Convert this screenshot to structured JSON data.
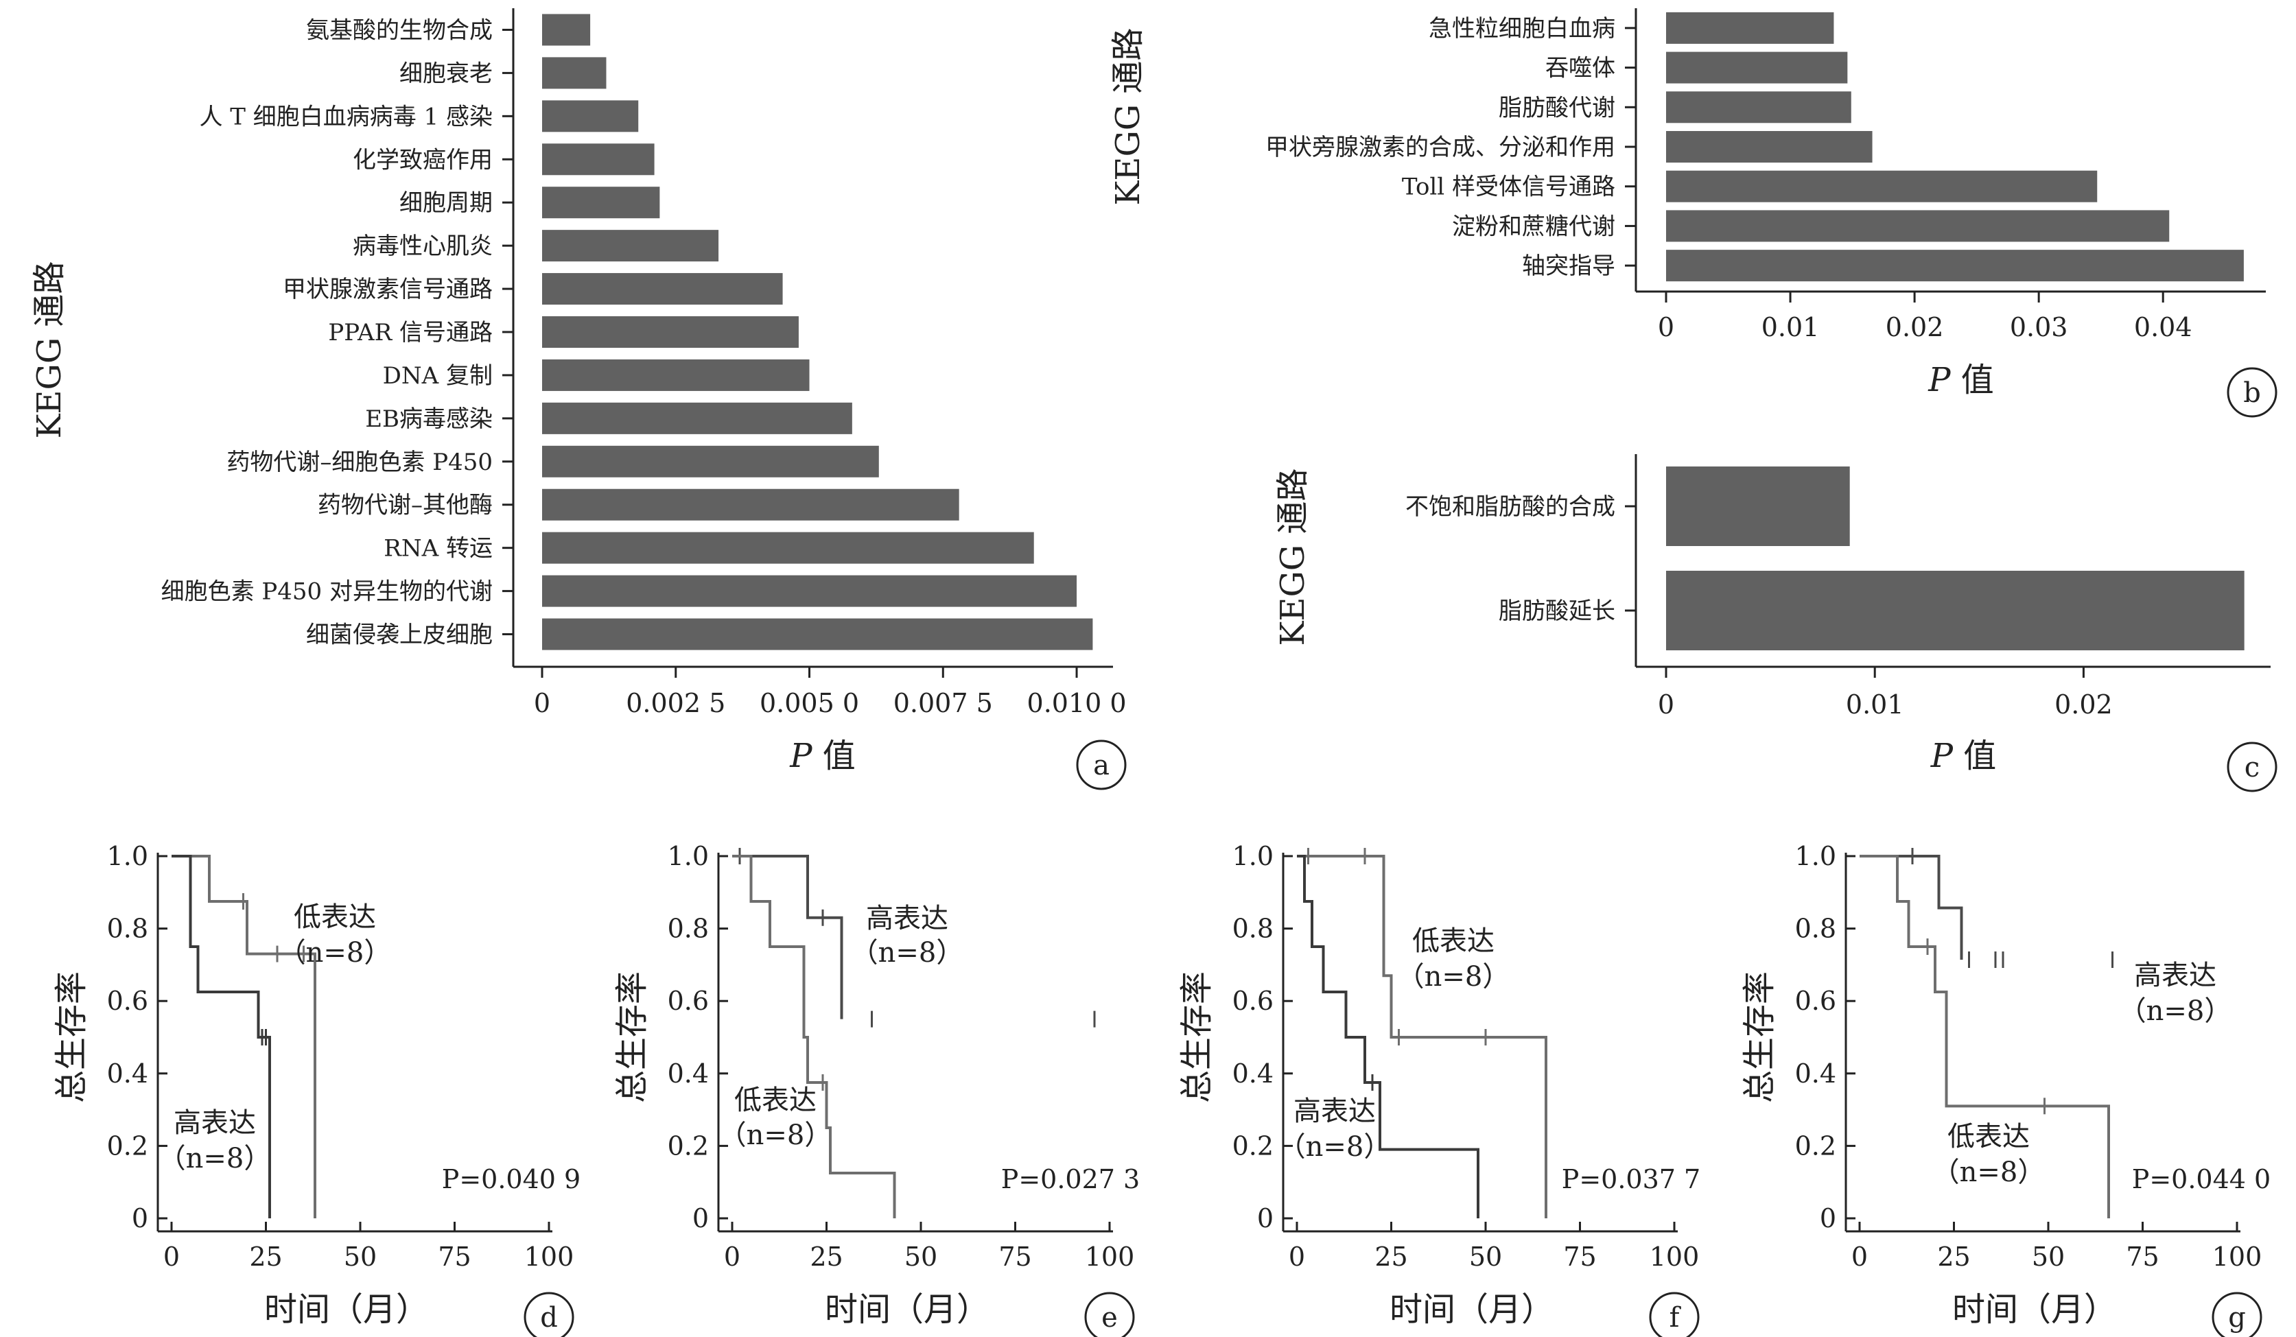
{
  "chart_data": [
    {
      "id": "a",
      "type": "bar",
      "orientation": "horizontal",
      "panel_label": "a",
      "xlabel_italic": "P",
      "xlabel_rest": " 值",
      "ylabel": "KEGG 通路",
      "xlim": [
        0,
        0.0105
      ],
      "xticks": [
        0,
        0.0025,
        0.005,
        0.0075,
        0.01
      ],
      "xtick_labels": [
        "0",
        "0.002 5",
        "0.005 0",
        "0.007 5",
        "0.010 0"
      ],
      "categories": [
        "氨基酸的生物合成",
        "细胞衰老",
        "人 T 细胞白血病病毒 1 感染",
        "化学致癌作用",
        "细胞周期",
        "病毒性心肌炎",
        "甲状腺激素信号通路",
        "PPAR 信号通路",
        "DNA 复制",
        "EB病毒感染",
        "药物代谢–细胞色素 P450",
        "药物代谢–其他酶",
        "RNA 转运",
        "细胞色素 P450 对异生物的代谢",
        "细菌侵袭上皮细胞"
      ],
      "values": [
        0.0009,
        0.0012,
        0.0018,
        0.0021,
        0.0022,
        0.0033,
        0.0045,
        0.0048,
        0.005,
        0.0058,
        0.0063,
        0.0078,
        0.0092,
        0.01,
        0.0103
      ],
      "bar_color": "#616161"
    },
    {
      "id": "b",
      "type": "bar",
      "orientation": "horizontal",
      "panel_label": "b",
      "xlabel_italic": "P",
      "xlabel_rest": " 值",
      "ylabel": "KEGG 通路",
      "xlim": [
        0,
        0.0475
      ],
      "xticks": [
        0,
        0.01,
        0.02,
        0.03,
        0.04
      ],
      "xtick_labels": [
        "0",
        "0.01",
        "0.02",
        "0.03",
        "0.04"
      ],
      "categories": [
        "急性粒细胞白血病",
        "吞噬体",
        "脂肪酸代谢",
        "甲状旁腺激素的合成、分泌和作用",
        "Toll 样受体信号通路",
        "淀粉和蔗糖代谢",
        "轴突指导"
      ],
      "values": [
        0.0135,
        0.0146,
        0.0149,
        0.0166,
        0.0347,
        0.0405,
        0.0465
      ],
      "bar_color": "#616161"
    },
    {
      "id": "c",
      "type": "bar",
      "orientation": "horizontal",
      "panel_label": "c",
      "xlabel_italic": "P",
      "xlabel_rest": " 值",
      "ylabel": "KEGG 通路",
      "xlim": [
        0,
        0.0285
      ],
      "xticks": [
        0,
        0.01,
        0.02
      ],
      "xtick_labels": [
        "0",
        "0.01",
        "0.02"
      ],
      "categories": [
        "不饱和脂肪酸的合成",
        "脂肪酸延长"
      ],
      "values": [
        0.0088,
        0.0277
      ],
      "bar_color": "#616161"
    },
    {
      "id": "d",
      "type": "line",
      "subtype": "kaplan-meier",
      "panel_label": "d",
      "xlabel": "时间（月）",
      "ylabel": "总生存率",
      "xlim": [
        0,
        100
      ],
      "ylim": [
        0,
        1
      ],
      "xticks": [
        0,
        25,
        50,
        75,
        100
      ],
      "yticks": [
        0,
        0.2,
        0.4,
        0.6,
        0.8,
        1.0
      ],
      "ytick_labels": [
        "0",
        "0.2",
        "0.4",
        "0.6",
        "0.8",
        "1.0"
      ],
      "p_label": "P=0.040 9",
      "series": [
        {
          "name": "低表达",
          "n_label": "（n=8）",
          "color": "#6e6e6e",
          "x": [
            0,
            10,
            20,
            38,
            38
          ],
          "y": [
            1.0,
            0.875,
            0.73,
            0.55,
            0.0
          ],
          "censored_x": [
            19,
            28,
            35
          ]
        },
        {
          "name": "高表达",
          "n_label": "（n=8）",
          "color": "#3a3a3a",
          "x": [
            0,
            5,
            7,
            23,
            26,
            26
          ],
          "y": [
            1.0,
            0.75,
            0.625,
            0.5,
            0.33,
            0.0
          ],
          "censored_x": [
            24,
            25
          ]
        }
      ]
    },
    {
      "id": "e",
      "type": "line",
      "subtype": "kaplan-meier",
      "panel_label": "e",
      "xlabel": "时间（月）",
      "ylabel": "总生存率",
      "xlim": [
        0,
        100
      ],
      "ylim": [
        0,
        1
      ],
      "xticks": [
        0,
        25,
        50,
        75,
        100
      ],
      "yticks": [
        0,
        0.2,
        0.4,
        0.6,
        0.8,
        1.0
      ],
      "ytick_labels": [
        "0",
        "0.2",
        "0.4",
        "0.6",
        "0.8",
        "1.0"
      ],
      "p_label": "P=0.027 3",
      "series": [
        {
          "name": "高表达",
          "n_label": "（n=8）",
          "color": "#4a4a4a",
          "x": [
            0,
            20,
            29
          ],
          "y": [
            1.0,
            0.83,
            0.55
          ],
          "censored_x": [
            2,
            24,
            37,
            96
          ]
        },
        {
          "name": "低表达",
          "n_label": "（n=8）",
          "color": "#6e6e6e",
          "x": [
            0,
            5,
            10,
            19,
            20,
            25,
            26,
            43
          ],
          "y": [
            1.0,
            0.875,
            0.75,
            0.5,
            0.375,
            0.25,
            0.125,
            0.0
          ],
          "censored_x": [
            24
          ]
        }
      ]
    },
    {
      "id": "f",
      "type": "line",
      "subtype": "kaplan-meier",
      "panel_label": "f",
      "xlabel": "时间（月）",
      "ylabel": "总生存率",
      "xlim": [
        0,
        100
      ],
      "ylim": [
        0,
        1
      ],
      "xticks": [
        0,
        25,
        50,
        75,
        100
      ],
      "yticks": [
        0,
        0.2,
        0.4,
        0.6,
        0.8,
        1.0
      ],
      "ytick_labels": [
        "0",
        "0.2",
        "0.4",
        "0.6",
        "0.8",
        "1.0"
      ],
      "p_label": "P=0.037 7",
      "series": [
        {
          "name": "低表达",
          "n_label": "（n=8）",
          "color": "#6e6e6e",
          "x": [
            0,
            23,
            25,
            66,
            66
          ],
          "y": [
            1.0,
            0.67,
            0.5,
            0.5,
            0.0
          ],
          "censored_x": [
            3,
            18,
            27,
            50
          ]
        },
        {
          "name": "高表达",
          "n_label": "（n=8）",
          "color": "#3a3a3a",
          "x": [
            0,
            2,
            4,
            7,
            13,
            18,
            22,
            48,
            48
          ],
          "y": [
            1.0,
            0.875,
            0.75,
            0.625,
            0.5,
            0.375,
            0.19,
            0.19,
            0.0
          ],
          "censored_x": [
            20
          ]
        }
      ]
    },
    {
      "id": "g",
      "type": "line",
      "subtype": "kaplan-meier",
      "panel_label": "g",
      "xlabel": "时间（月）",
      "ylabel": "总生存率",
      "xlim": [
        0,
        100
      ],
      "ylim": [
        0,
        1
      ],
      "xticks": [
        0,
        25,
        50,
        75,
        100
      ],
      "yticks": [
        0,
        0.2,
        0.4,
        0.6,
        0.8,
        1.0
      ],
      "ytick_labels": [
        "0",
        "0.2",
        "0.4",
        "0.6",
        "0.8",
        "1.0"
      ],
      "p_label": "P=0.044 0",
      "series": [
        {
          "name": "高表达",
          "n_label": "（n=8）",
          "color": "#4a4a4a",
          "x": [
            0,
            21,
            27
          ],
          "y": [
            1.0,
            0.857,
            0.714
          ],
          "censored_x": [
            14,
            29,
            36,
            38,
            67
          ]
        },
        {
          "name": "低表达",
          "n_label": "（n=8）",
          "color": "#6e6e6e",
          "x": [
            0,
            10,
            13,
            20,
            23,
            66,
            66
          ],
          "y": [
            1.0,
            0.875,
            0.75,
            0.625,
            0.31,
            0.31,
            0.0
          ],
          "censored_x": [
            18,
            49
          ]
        }
      ]
    }
  ]
}
